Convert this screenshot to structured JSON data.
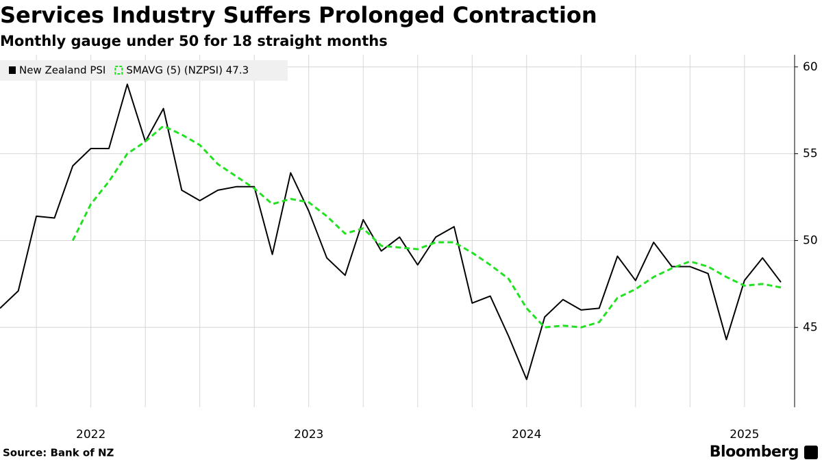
{
  "chart_data": {
    "type": "line",
    "title": "Services Industry Suffers Prolonged Contraction",
    "subtitle": "Monthly gauge under 50 for 18 straight months",
    "source": "Source: Bank of NZ",
    "brand": "Bloomberg",
    "x": [
      2021.583,
      2021.667,
      2021.75,
      2021.833,
      2021.917,
      2022,
      2022.083,
      2022.167,
      2022.25,
      2022.333,
      2022.417,
      2022.5,
      2022.583,
      2022.667,
      2022.75,
      2022.833,
      2022.917,
      2023,
      2023.083,
      2023.167,
      2023.25,
      2023.333,
      2023.417,
      2023.5,
      2023.583,
      2023.667,
      2023.75,
      2023.833,
      2023.917,
      2024,
      2024.083,
      2024.167,
      2024.25,
      2024.333,
      2024.417,
      2024.5,
      2024.583,
      2024.667,
      2024.75,
      2024.833,
      2024.917,
      2025,
      2025.083,
      2025.167
    ],
    "series": [
      {
        "name": "New Zealand PSI",
        "color": "#000000",
        "dash": false,
        "values": [
          46.1,
          47.1,
          51.4,
          51.3,
          54.3,
          55.3,
          55.3,
          59.0,
          55.7,
          57.6,
          52.9,
          52.3,
          52.9,
          53.1,
          53.1,
          49.2,
          53.9,
          51.7,
          49.0,
          48.0,
          51.2,
          49.4,
          50.2,
          48.6,
          50.2,
          50.8,
          46.4,
          46.8,
          44.5,
          42.0,
          45.6,
          46.6,
          46.0,
          46.1,
          49.1,
          47.7,
          49.9,
          48.5,
          48.5,
          48.1,
          44.3,
          47.7,
          49.0,
          47.6
        ]
      },
      {
        "name": "SMAVG (5) (NZPSI) 47.3",
        "color": "#22e022",
        "dash": true,
        "values": [
          null,
          null,
          null,
          null,
          50.0,
          52.1,
          53.4,
          55.0,
          55.7,
          56.6,
          56.1,
          55.5,
          54.4,
          53.7,
          53.0,
          52.1,
          52.4,
          52.2,
          51.4,
          50.4,
          50.7,
          49.7,
          49.6,
          49.5,
          49.9,
          49.9,
          49.3,
          48.6,
          47.8,
          46.1,
          45.0,
          45.1,
          45.0,
          45.3,
          46.7,
          47.2,
          47.9,
          48.4,
          48.8,
          48.5,
          47.9,
          47.4,
          47.5,
          47.3
        ]
      }
    ],
    "xlim": [
      2021.583,
      2025.23
    ],
    "xticks": [
      2022,
      2023,
      2024,
      2025
    ],
    "x_gridlines": [
      2021.75,
      2022,
      2022.25,
      2022.5,
      2022.75,
      2023,
      2023.25,
      2023.5,
      2023.75,
      2024,
      2024.25,
      2024.5,
      2024.75,
      2025
    ],
    "ylim": [
      40.4,
      60.7
    ],
    "yticks": [
      45,
      50,
      55,
      60
    ],
    "grid": true,
    "y_axis_side": "right",
    "legend": "top-left"
  }
}
